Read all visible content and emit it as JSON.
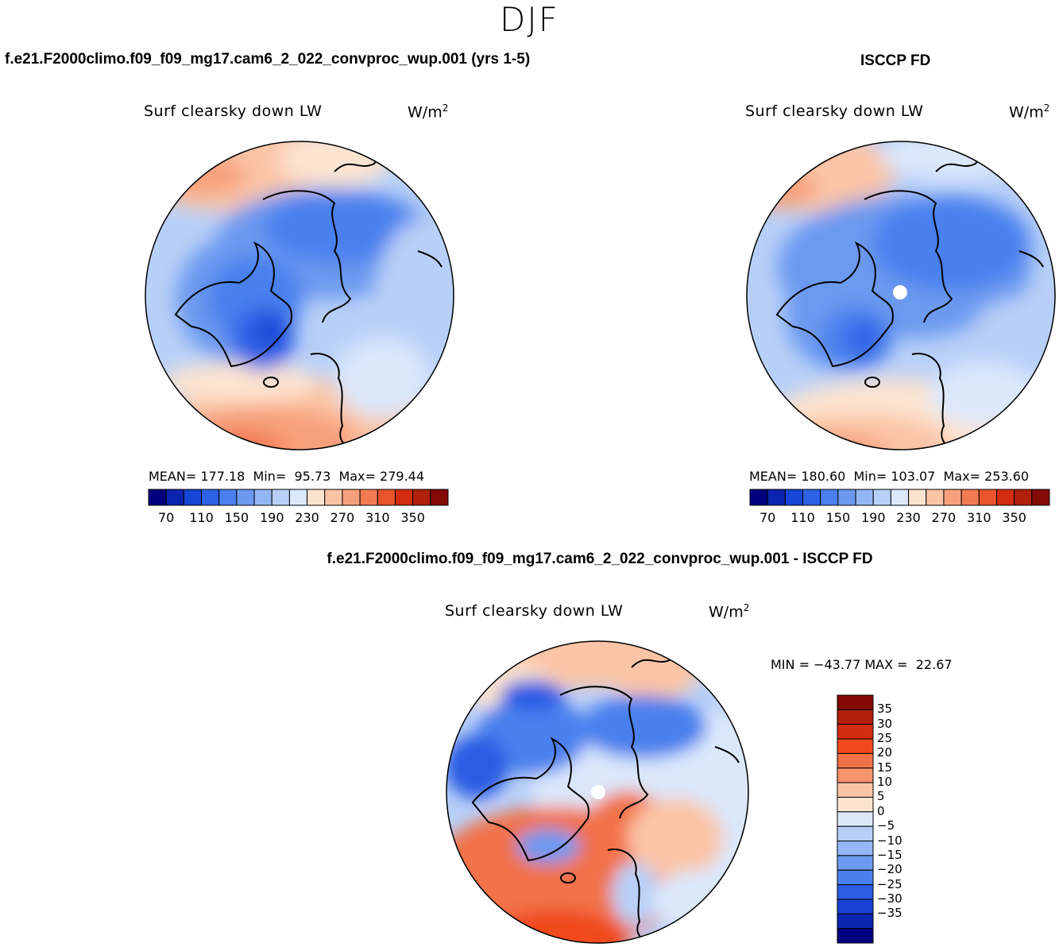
{
  "season": "DJF",
  "panels": [
    {
      "title": "f.e21.F2000climo.f09_f09_mg17.cam6_2_022_convproc_wup.001 (yrs 1-5)",
      "variable": "Surf clearsky down LW",
      "units_base": "W/m",
      "units_exp": "2",
      "stats": {
        "mean_label": "MEAN=",
        "mean": "177.18",
        "min_label": "Min=",
        "min": "95.73",
        "max_label": "Max=",
        "max": "279.44"
      }
    },
    {
      "title": "ISCCP FD",
      "variable": "Surf clearsky down LW",
      "units_base": "W/m",
      "units_exp": "2",
      "stats": {
        "mean_label": "MEAN=",
        "mean": "180.60",
        "min_label": "Min=",
        "min": "103.07",
        "max_label": "Max=",
        "max": "253.60"
      }
    }
  ],
  "horizontal_colorbar": {
    "colors": [
      "#00007f",
      "#0b24b0",
      "#1646d6",
      "#2e62e6",
      "#4a80ee",
      "#6c9af0",
      "#93b6f5",
      "#b8d0f8",
      "#dbe8fc",
      "#fde4d0",
      "#fbc4a6",
      "#f7a17c",
      "#f17a52",
      "#e9542d",
      "#d32c10",
      "#b0200b",
      "#840a06"
    ],
    "tick_labels": [
      "70",
      "110",
      "150",
      "190",
      "230",
      "270",
      "310",
      "350"
    ]
  },
  "difference_panel": {
    "title": "f.e21.F2000climo.f09_f09_mg17.cam6_2_022_convproc_wup.001 - ISCCP FD",
    "variable": "Surf clearsky down LW",
    "units_base": "W/m",
    "units_exp": "2",
    "min_max": "MIN = −43.77 MAX =  22.67"
  },
  "vertical_colorbar": {
    "colors_top_to_bottom": [
      "#840a06",
      "#b0200b",
      "#d32c10",
      "#f04a1e",
      "#f27248",
      "#f6946c",
      "#fbc4a6",
      "#fde4d0",
      "#dbe8fc",
      "#b8d0f8",
      "#93b6f5",
      "#6c9af0",
      "#4a80ee",
      "#2a5ce4",
      "#1840d4",
      "#0b24b0",
      "#00007f"
    ],
    "tick_labels": [
      "35",
      "30",
      "25",
      "20",
      "15",
      "10",
      "5",
      "0",
      "−5",
      "−10",
      "−15",
      "−20",
      "−25",
      "−30",
      "−35"
    ]
  }
}
